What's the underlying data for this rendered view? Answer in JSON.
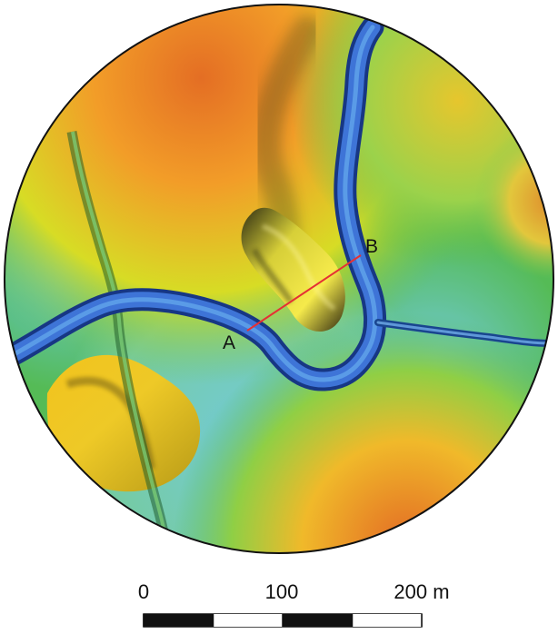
{
  "map": {
    "colors": {
      "low": "#4fb9c9",
      "mid": "#49b442",
      "high": "#f0e11d",
      "top": "#e46e24",
      "river": "#3d6fd2",
      "river_edge": "#1e3e98",
      "profile_line": "#e53034",
      "frame": "#111111"
    },
    "profile": {
      "start_label": "A",
      "end_label": "B"
    }
  },
  "scale_bar": {
    "label_0": "0",
    "label_100": "100",
    "label_200": "200 m"
  }
}
